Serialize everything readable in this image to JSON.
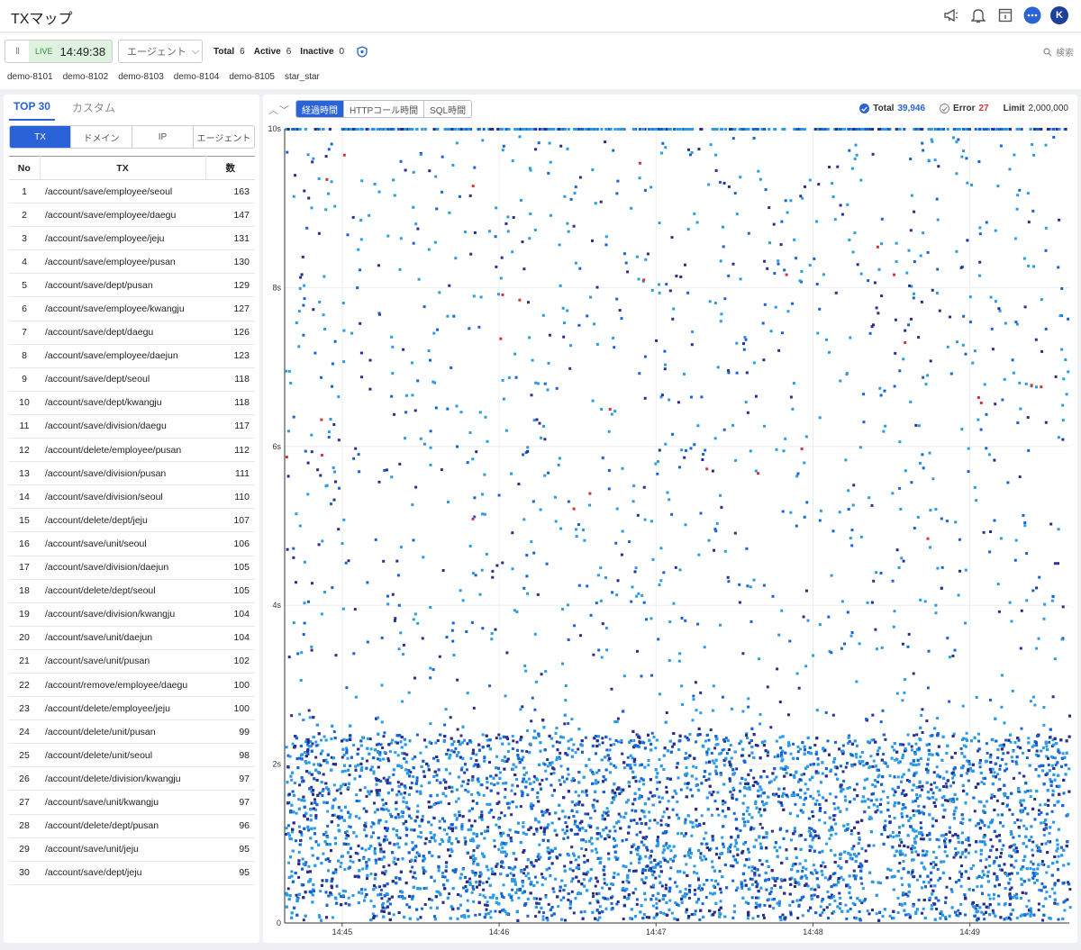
{
  "app": {
    "title": "TXマップ"
  },
  "header_icons": [
    "megaphone-icon",
    "bell-icon",
    "notice-icon",
    "chat-icon"
  ],
  "avatar": {
    "initial": "K",
    "color": "#1d3f9e"
  },
  "live": {
    "pause": "II",
    "label": "LIVE",
    "time": "14:49:38"
  },
  "agent_dropdown": {
    "label": "エージェント",
    "chevron": "⌵"
  },
  "counts": {
    "total_label": "Total",
    "total": "6",
    "active_label": "Active",
    "active": "6",
    "inactive_label": "Inactive",
    "inactive": "0"
  },
  "search": {
    "label": "検索"
  },
  "agents": [
    "demo-8101",
    "demo-8102",
    "demo-8103",
    "demo-8104",
    "demo-8105",
    "star_star"
  ],
  "left": {
    "tabs": [
      "TOP 30",
      "カスタム"
    ],
    "segments": [
      "TX",
      "ドメイン",
      "IP",
      "エージェント"
    ],
    "columns": {
      "no": "No",
      "tx": "TX",
      "count": "数"
    },
    "rows": [
      {
        "no": "1",
        "tx": "/account/save/employee/seoul",
        "count": "163"
      },
      {
        "no": "2",
        "tx": "/account/save/employee/daegu",
        "count": "147"
      },
      {
        "no": "3",
        "tx": "/account/save/employee/jeju",
        "count": "131"
      },
      {
        "no": "4",
        "tx": "/account/save/employee/pusan",
        "count": "130"
      },
      {
        "no": "5",
        "tx": "/account/save/dept/pusan",
        "count": "129"
      },
      {
        "no": "6",
        "tx": "/account/save/employee/kwangju",
        "count": "127"
      },
      {
        "no": "7",
        "tx": "/account/save/dept/daegu",
        "count": "126"
      },
      {
        "no": "8",
        "tx": "/account/save/employee/daejun",
        "count": "123"
      },
      {
        "no": "9",
        "tx": "/account/save/dept/seoul",
        "count": "118"
      },
      {
        "no": "10",
        "tx": "/account/save/dept/kwangju",
        "count": "118"
      },
      {
        "no": "11",
        "tx": "/account/save/division/daegu",
        "count": "117"
      },
      {
        "no": "12",
        "tx": "/account/delete/employee/pusan",
        "count": "112"
      },
      {
        "no": "13",
        "tx": "/account/save/division/pusan",
        "count": "111"
      },
      {
        "no": "14",
        "tx": "/account/save/division/seoul",
        "count": "110"
      },
      {
        "no": "15",
        "tx": "/account/delete/dept/jeju",
        "count": "107"
      },
      {
        "no": "16",
        "tx": "/account/save/unit/seoul",
        "count": "106"
      },
      {
        "no": "17",
        "tx": "/account/save/division/daejun",
        "count": "105"
      },
      {
        "no": "18",
        "tx": "/account/delete/dept/seoul",
        "count": "105"
      },
      {
        "no": "19",
        "tx": "/account/save/division/kwangju",
        "count": "104"
      },
      {
        "no": "20",
        "tx": "/account/save/unit/daejun",
        "count": "104"
      },
      {
        "no": "21",
        "tx": "/account/save/unit/pusan",
        "count": "102"
      },
      {
        "no": "22",
        "tx": "/account/remove/employee/daegu",
        "count": "100"
      },
      {
        "no": "23",
        "tx": "/account/delete/employee/jeju",
        "count": "100"
      },
      {
        "no": "24",
        "tx": "/account/delete/unit/pusan",
        "count": "99"
      },
      {
        "no": "25",
        "tx": "/account/delete/unit/seoul",
        "count": "98"
      },
      {
        "no": "26",
        "tx": "/account/delete/division/kwangju",
        "count": "97"
      },
      {
        "no": "27",
        "tx": "/account/save/unit/kwangju",
        "count": "97"
      },
      {
        "no": "28",
        "tx": "/account/delete/dept/pusan",
        "count": "96"
      },
      {
        "no": "29",
        "tx": "/account/save/unit/jeju",
        "count": "95"
      },
      {
        "no": "30",
        "tx": "/account/save/dept/jeju",
        "count": "95"
      }
    ]
  },
  "chart_panel": {
    "arrows": "︿﹀",
    "modes": [
      "経過時間",
      "HTTPコール時間",
      "SQL時間"
    ],
    "total_label": "Total",
    "total_value": "39,946",
    "error_label": "Error",
    "error_value": "27",
    "limit_label": "Limit",
    "limit_value": "2,000,000"
  },
  "colors": {
    "accent": "#2a63d8",
    "error": "#d8333a",
    "point_light": "#2b9be8",
    "point_mid": "#1565d8",
    "point_dark": "#2a2f8f"
  },
  "chart_data": {
    "type": "scatter",
    "title": "",
    "xlabel": "",
    "ylabel": "",
    "x_ticks": [
      "14:45",
      "14:46",
      "14:47",
      "14:48",
      "14:49"
    ],
    "y_ticks": [
      "0",
      "2s",
      "4s",
      "6s",
      "8s",
      "10s"
    ],
    "ylim": [
      0,
      10
    ],
    "xlim": [
      "14:44:38",
      "14:49:38"
    ],
    "series": [
      {
        "values": "dense band 0–2.5s across full window (~39,900 points), sparse scatter 2.5–10s, saturated row at 10s"
      },
      {
        "name": "Error",
        "values": "27 points, mostly 5–10s"
      }
    ]
  }
}
